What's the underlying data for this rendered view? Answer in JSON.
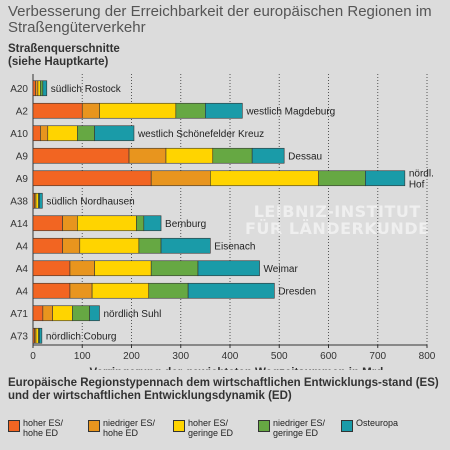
{
  "chart_data": {
    "type": "bar",
    "stacked": true,
    "orientation": "horizontal",
    "title": "Verbesserung der Erreichbarkeit der europäischen Regionen im Straßengüterverkehr",
    "subtitle": "Straßenquerschnitte\n(siehe Hauptkarte)",
    "xlabel": "Verringerung der gewichteten Wegzeitsummen in Mrd.",
    "xlim": [
      0,
      800
    ],
    "xticks": [
      "0",
      "100",
      "200",
      "300",
      "400",
      "500",
      "600",
      "700",
      "800"
    ],
    "grid": true,
    "categories": [
      "A20",
      "A2",
      "A10",
      "A9",
      "A9",
      "A38",
      "A14",
      "A4",
      "A4",
      "A4",
      "A71",
      "A73"
    ],
    "bar_labels": [
      "südlich Rostock",
      "westlich Magdeburg",
      "westlich Schönefelder Kreuz",
      "Dessau",
      "nördl.\nHof",
      "südlich Nordhausen",
      "Bernburg",
      "Eisenach",
      "Weimar",
      "Dresden",
      "nördlich Suhl",
      "nördlich Coburg"
    ],
    "legend_title": "Europäische Regionstypennach dem wirtschaftlichen Entwicklungs-stand (ES) und der wirtschaftlichen Entwicklungsdynamik (ED)",
    "legend_position": "bottom",
    "series": [
      {
        "name": "hoher ES/\nhohe ED",
        "color": "#f26522",
        "values": [
          5,
          100,
          15,
          195,
          240,
          3,
          60,
          60,
          75,
          75,
          20,
          3
        ]
      },
      {
        "name": "niedriger ES/\nhohe ED",
        "color": "#e8951e",
        "values": [
          5,
          35,
          15,
          75,
          120,
          3,
          30,
          35,
          50,
          45,
          20,
          3
        ]
      },
      {
        "name": "hoher ES/\ngeringe ED",
        "color": "#ffd400",
        "values": [
          5,
          155,
          60,
          95,
          220,
          5,
          120,
          120,
          115,
          115,
          40,
          5
        ]
      },
      {
        "name": "niedriger ES/\ngeringe ED",
        "color": "#66a843",
        "values": [
          5,
          60,
          35,
          80,
          95,
          2,
          15,
          45,
          95,
          80,
          35,
          2
        ]
      },
      {
        "name": "Osteuropa",
        "color": "#1a9ba8",
        "values": [
          8,
          75,
          80,
          65,
          80,
          6,
          35,
          100,
          125,
          175,
          20,
          5
        ]
      }
    ]
  },
  "watermark": {
    "line1": "LEIBNIZ-INSTITUT",
    "line2": "FÜR LÄNDERKUNDE"
  }
}
